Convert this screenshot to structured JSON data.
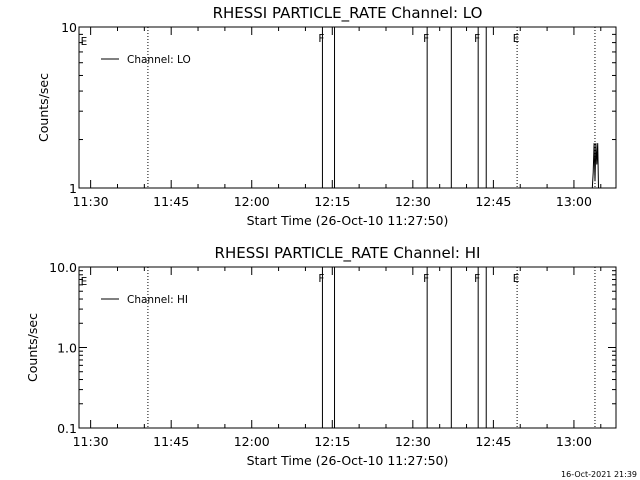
{
  "chart_data": [
    {
      "type": "line",
      "title": "RHESSI PARTICLE_RATE Channel: LO",
      "xlabel": "Start Time (26-Oct-10 11:27:50)",
      "ylabel": "Counts/sec",
      "y_scale": "log",
      "ylim": [
        1,
        10
      ],
      "y_tick_labels": [
        "1",
        "10"
      ],
      "y_tick_values": [
        1,
        10
      ],
      "x_tick_labels": [
        "11:30",
        "11:45",
        "12:00",
        "12:15",
        "12:30",
        "12:45",
        "13:00"
      ],
      "x_tick_values": [
        "11:30",
        "11:45",
        "12:00",
        "12:15",
        "12:30",
        "12:45",
        "13:00"
      ],
      "xlim": [
        "11:27:50",
        "13:07:50"
      ],
      "legend_location": "top-left",
      "series": [
        {
          "name": "Channel: LO",
          "x": [
            "13:03:25",
            "13:03:35",
            "13:03:45",
            "13:03:55",
            "13:04:05",
            "13:04:15",
            "13:04:25",
            "13:04:35"
          ],
          "y": [
            1,
            1.25,
            1.9,
            1.1,
            1.9,
            1.4,
            1.9,
            1
          ]
        }
      ],
      "vertical_lines": [
        {
          "x": "11:40:40",
          "style": "dotted",
          "label": ""
        },
        {
          "x": "12:13:10",
          "style": "solid",
          "label": "F"
        },
        {
          "x": "12:15:25",
          "style": "solid",
          "label": ""
        },
        {
          "x": "12:32:40",
          "style": "solid",
          "label": "F"
        },
        {
          "x": "12:37:10",
          "style": "solid",
          "label": ""
        },
        {
          "x": "12:42:10",
          "style": "solid",
          "label": "F"
        },
        {
          "x": "12:43:40",
          "style": "solid",
          "label": ""
        },
        {
          "x": "12:49:25",
          "style": "dotted",
          "label": "E"
        },
        {
          "x": "13:03:55",
          "style": "dotted",
          "label": ""
        }
      ],
      "left_edge_label": "E"
    },
    {
      "type": "line",
      "title": "RHESSI PARTICLE_RATE Channel: HI",
      "xlabel": "Start Time (26-Oct-10 11:27:50)",
      "ylabel": "Counts/sec",
      "y_scale": "log",
      "ylim": [
        0.1,
        10
      ],
      "y_tick_labels": [
        "0.1",
        "1.0",
        "10.0"
      ],
      "y_tick_values": [
        0.1,
        1,
        10
      ],
      "x_tick_labels": [
        "11:30",
        "11:45",
        "12:00",
        "12:15",
        "12:30",
        "12:45",
        "13:00"
      ],
      "x_tick_values": [
        "11:30",
        "11:45",
        "12:00",
        "12:15",
        "12:30",
        "12:45",
        "13:00"
      ],
      "xlim": [
        "11:27:50",
        "13:07:50"
      ],
      "legend_location": "top-left",
      "series": [
        {
          "name": "Channel: HI",
          "x": [],
          "y": []
        }
      ],
      "vertical_lines": [
        {
          "x": "11:40:40",
          "style": "dotted",
          "label": ""
        },
        {
          "x": "12:13:10",
          "style": "solid",
          "label": "F"
        },
        {
          "x": "12:15:25",
          "style": "solid",
          "label": ""
        },
        {
          "x": "12:32:40",
          "style": "solid",
          "label": "F"
        },
        {
          "x": "12:37:10",
          "style": "solid",
          "label": ""
        },
        {
          "x": "12:42:10",
          "style": "solid",
          "label": "F"
        },
        {
          "x": "12:43:40",
          "style": "solid",
          "label": ""
        },
        {
          "x": "12:49:25",
          "style": "dotted",
          "label": "E"
        },
        {
          "x": "13:03:55",
          "style": "dotted",
          "label": ""
        }
      ],
      "left_edge_label": "E"
    }
  ],
  "footer": {
    "timestamp": "16-Oct-2021 21:39"
  }
}
